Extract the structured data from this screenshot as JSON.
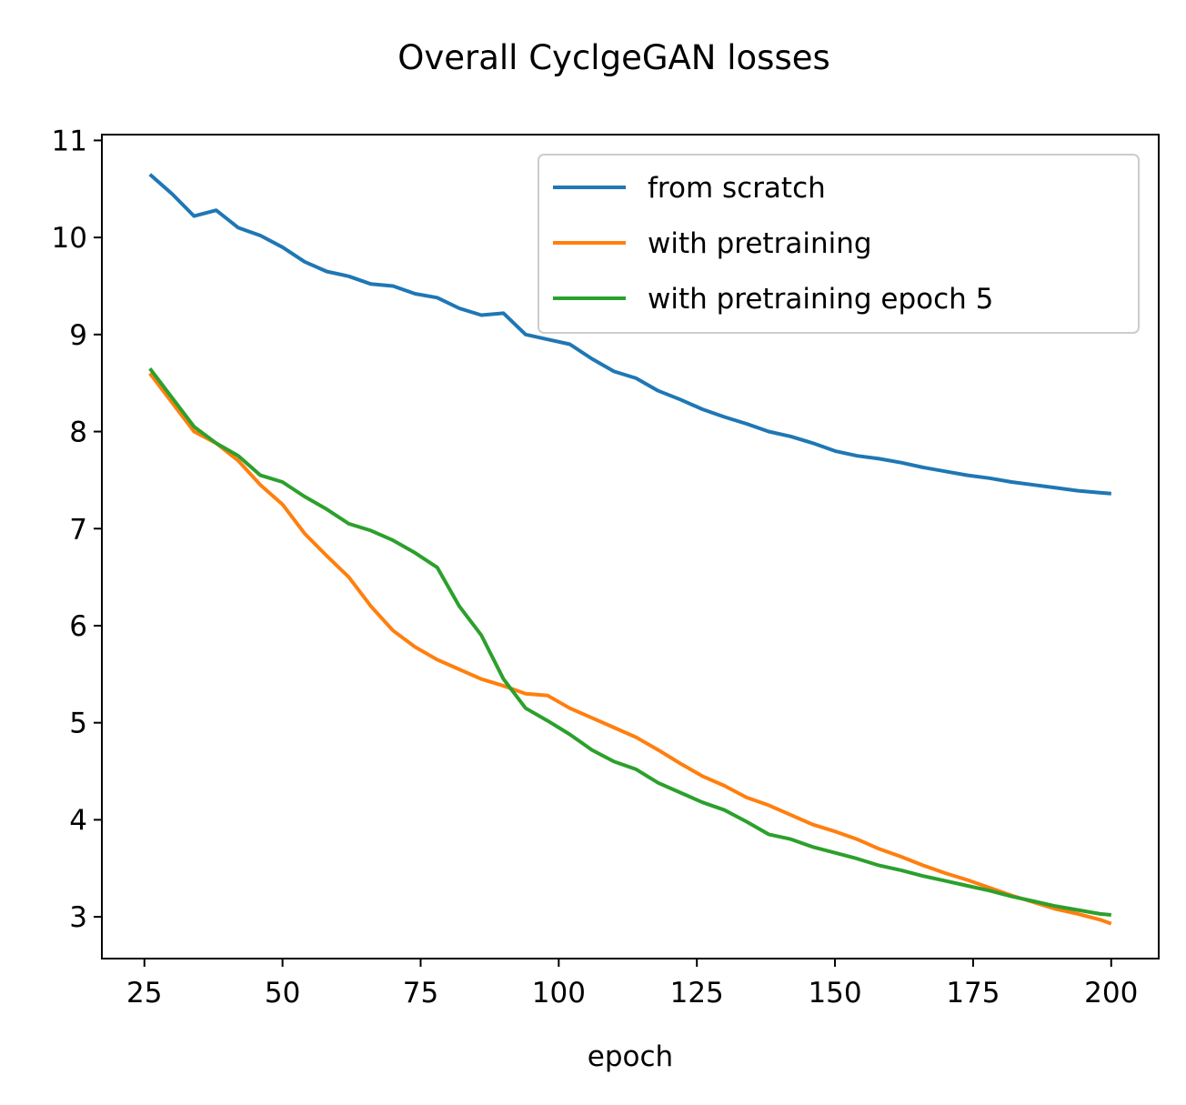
{
  "chart_data": {
    "type": "line",
    "title": "Overall CyclgeGAN losses",
    "x_label": "epoch",
    "x": [
      26,
      30,
      34,
      38,
      42,
      46,
      50,
      54,
      58,
      62,
      66,
      70,
      74,
      78,
      82,
      86,
      90,
      94,
      98,
      102,
      106,
      110,
      114,
      118,
      122,
      126,
      130,
      134,
      138,
      142,
      146,
      150,
      154,
      158,
      162,
      166,
      170,
      174,
      178,
      182,
      186,
      190,
      194,
      198,
      200
    ],
    "series": [
      {
        "name": "from scratch",
        "color": "#1f77b4",
        "values": [
          10.65,
          10.45,
          10.22,
          10.28,
          10.1,
          10.02,
          9.9,
          9.75,
          9.65,
          9.6,
          9.52,
          9.5,
          9.42,
          9.38,
          9.27,
          9.2,
          9.22,
          9.0,
          8.95,
          8.9,
          8.75,
          8.62,
          8.55,
          8.42,
          8.33,
          8.23,
          8.15,
          8.08,
          8.0,
          7.95,
          7.88,
          7.8,
          7.75,
          7.72,
          7.68,
          7.63,
          7.59,
          7.55,
          7.52,
          7.48,
          7.45,
          7.42,
          7.39,
          7.37,
          7.36
        ]
      },
      {
        "name": "with pretraining",
        "color": "#ff7f0e",
        "values": [
          8.6,
          8.3,
          8.0,
          7.88,
          7.7,
          7.45,
          7.25,
          6.95,
          6.72,
          6.5,
          6.2,
          5.95,
          5.78,
          5.65,
          5.55,
          5.45,
          5.38,
          5.3,
          5.28,
          5.15,
          5.05,
          4.95,
          4.85,
          4.72,
          4.58,
          4.45,
          4.35,
          4.23,
          4.15,
          4.05,
          3.95,
          3.88,
          3.8,
          3.7,
          3.62,
          3.53,
          3.45,
          3.38,
          3.3,
          3.22,
          3.15,
          3.08,
          3.03,
          2.97,
          2.93
        ]
      },
      {
        "name": "with pretraining epoch 5",
        "color": "#2ca02c",
        "values": [
          8.65,
          8.35,
          8.05,
          7.88,
          7.75,
          7.55,
          7.48,
          7.33,
          7.2,
          7.05,
          6.98,
          6.88,
          6.75,
          6.6,
          6.2,
          5.9,
          5.45,
          5.15,
          5.02,
          4.88,
          4.72,
          4.6,
          4.52,
          4.38,
          4.28,
          4.18,
          4.1,
          3.98,
          3.85,
          3.8,
          3.72,
          3.66,
          3.6,
          3.53,
          3.48,
          3.42,
          3.37,
          3.32,
          3.27,
          3.21,
          3.16,
          3.11,
          3.07,
          3.03,
          3.02
        ]
      }
    ],
    "xlim": [
      17.3,
      208.6
    ],
    "ylim": [
      2.57,
      11.06
    ],
    "xticks": [
      25,
      50,
      75,
      100,
      125,
      150,
      175,
      200
    ],
    "yticks": [
      3,
      4,
      5,
      6,
      7,
      8,
      9,
      10,
      11
    ],
    "legend": "upper right"
  }
}
